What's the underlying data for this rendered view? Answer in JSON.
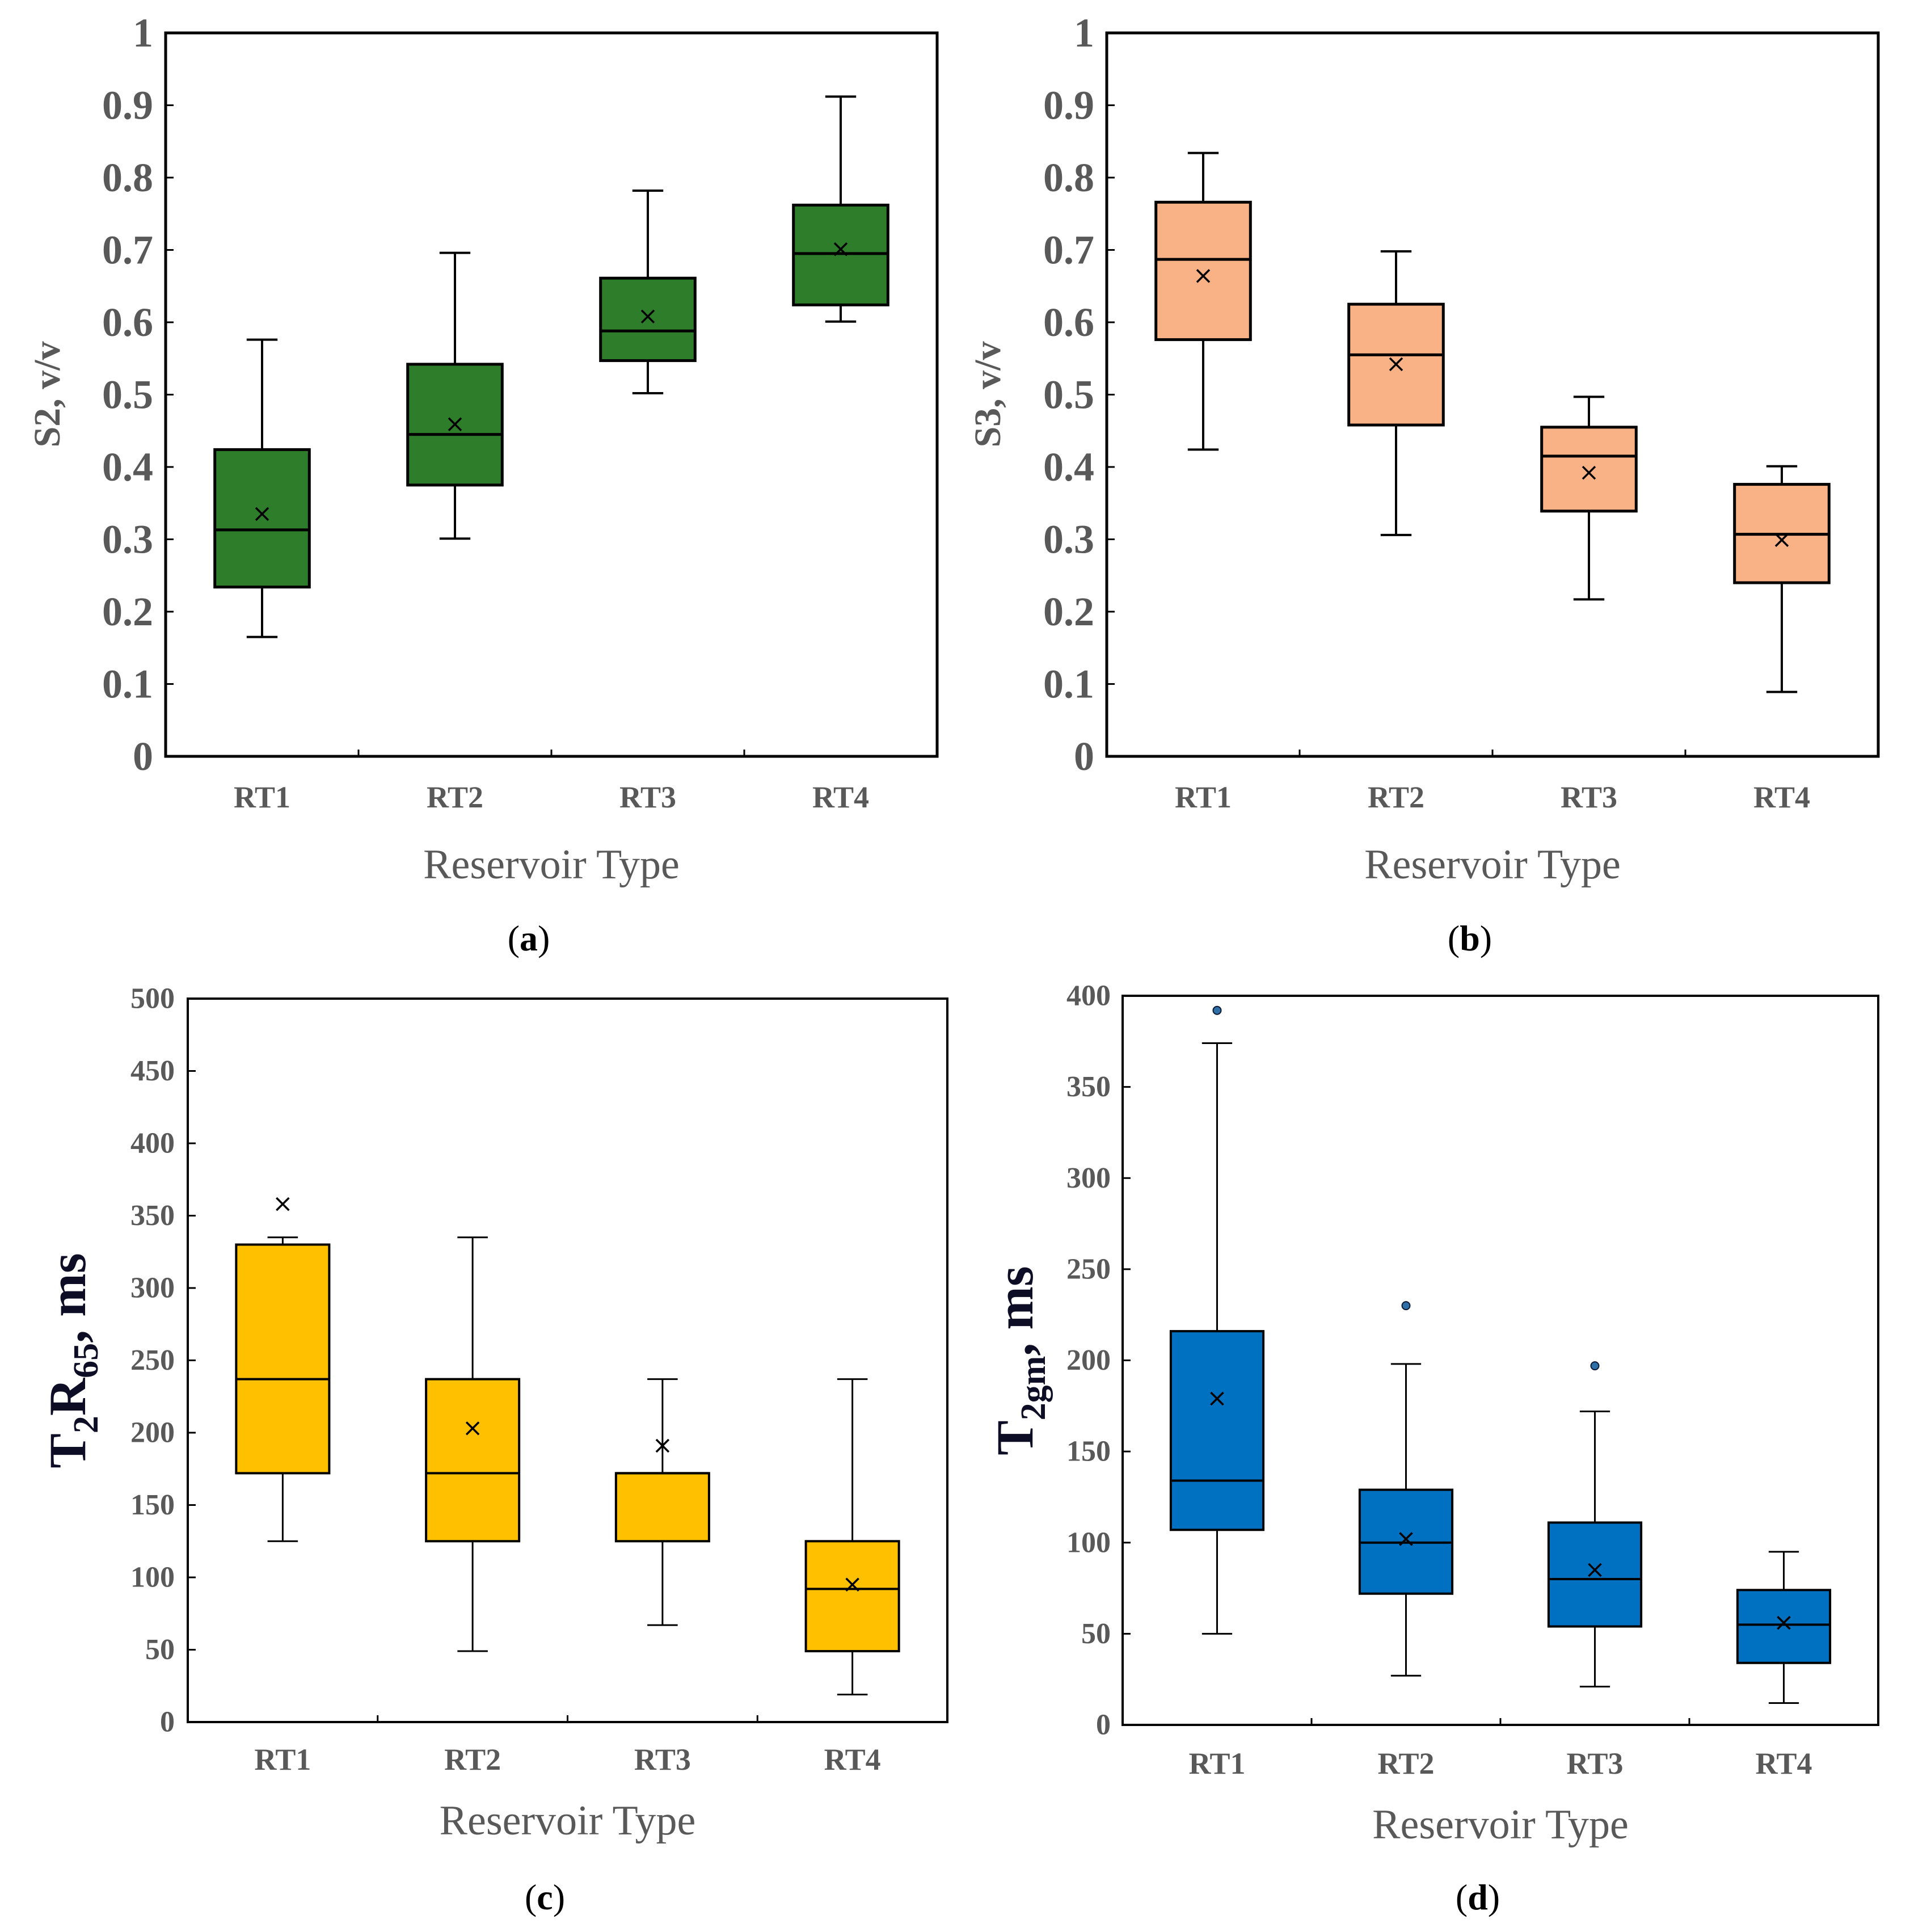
{
  "figure": {
    "panels": [
      {
        "id": "a",
        "letter": "a",
        "y_label": "S2, v/v",
        "x_label": "Reservoir Type"
      },
      {
        "id": "b",
        "letter": "b",
        "y_label": "S3, v/v",
        "x_label": "Reservoir Type"
      },
      {
        "id": "c",
        "letter": "c",
        "y_label_main": "T",
        "y_label_sub1": "2",
        "y_label_mid": "R",
        "y_label_sub2": "65",
        "y_label_tail": ", ms",
        "x_label": "Reservoir Type"
      },
      {
        "id": "d",
        "letter": "d",
        "y_label_main": "T",
        "y_label_sub1": "2gm",
        "y_label_tail": ", ms",
        "x_label": "Reservoir Type"
      }
    ]
  },
  "chart_data": [
    {
      "type": "box",
      "panel": "a",
      "color": "#2e7d2b",
      "ylabel": "S2, v/v",
      "xlabel": "Reservoir Type",
      "ylim": [
        0,
        1
      ],
      "yticks": [
        0,
        0.1,
        0.2,
        0.3,
        0.4,
        0.5,
        0.6,
        0.7,
        0.8,
        0.9,
        1
      ],
      "ytick_labels": [
        "0",
        "0.1",
        "0.2",
        "0.3",
        "0.4",
        "0.5",
        "0.6",
        "0.7",
        "0.8",
        "0.9",
        "1"
      ],
      "categories": [
        "RT1",
        "RT2",
        "RT3",
        "RT4"
      ],
      "boxes": [
        {
          "min": 0.165,
          "q1": 0.234,
          "median": 0.313,
          "q3": 0.424,
          "max": 0.576,
          "mean": 0.335
        },
        {
          "min": 0.301,
          "q1": 0.375,
          "median": 0.445,
          "q3": 0.542,
          "max": 0.696,
          "mean": 0.459
        },
        {
          "min": 0.502,
          "q1": 0.547,
          "median": 0.588,
          "q3": 0.661,
          "max": 0.782,
          "mean": 0.608
        },
        {
          "min": 0.601,
          "q1": 0.624,
          "median": 0.695,
          "q3": 0.762,
          "max": 0.912,
          "mean": 0.701
        }
      ]
    },
    {
      "type": "box",
      "panel": "b",
      "color": "#f9b186",
      "ylabel": "S3, v/v",
      "xlabel": "Reservoir Type",
      "ylim": [
        0,
        1
      ],
      "yticks": [
        0,
        0.1,
        0.2,
        0.3,
        0.4,
        0.5,
        0.6,
        0.7,
        0.8,
        0.9,
        1
      ],
      "ytick_labels": [
        "0",
        "0.1",
        "0.2",
        "0.3",
        "0.4",
        "0.5",
        "0.6",
        "0.7",
        "0.8",
        "0.9",
        "1"
      ],
      "categories": [
        "RT1",
        "RT2",
        "RT3",
        "RT4"
      ],
      "boxes": [
        {
          "min": 0.424,
          "q1": 0.576,
          "median": 0.687,
          "q3": 0.766,
          "max": 0.834,
          "mean": 0.664
        },
        {
          "min": 0.306,
          "q1": 0.458,
          "median": 0.555,
          "q3": 0.625,
          "max": 0.698,
          "mean": 0.542
        },
        {
          "min": 0.217,
          "q1": 0.339,
          "median": 0.415,
          "q3": 0.455,
          "max": 0.497,
          "mean": 0.392
        },
        {
          "min": 0.089,
          "q1": 0.24,
          "median": 0.307,
          "q3": 0.376,
          "max": 0.401,
          "mean": 0.299
        }
      ]
    },
    {
      "type": "box",
      "panel": "c",
      "color": "#ffc000",
      "ylabel": "T2R65, ms",
      "xlabel": "Reservoir Type",
      "ylim": [
        0,
        500
      ],
      "yticks": [
        0,
        50,
        100,
        150,
        200,
        250,
        300,
        350,
        400,
        450,
        500
      ],
      "ytick_labels": [
        "0",
        "50",
        "100",
        "150",
        "200",
        "250",
        "300",
        "350",
        "400",
        "450",
        "500"
      ],
      "categories": [
        "RT1",
        "RT2",
        "RT3",
        "RT4"
      ],
      "boxes": [
        {
          "min": 125,
          "q1": 172,
          "median": 237,
          "q3": 330,
          "max": 335,
          "mean": 358
        },
        {
          "min": 49,
          "q1": 125,
          "median": 172,
          "q3": 237,
          "max": 335,
          "mean": 203
        },
        {
          "min": 67,
          "q1": 125,
          "median": 172,
          "q3": 172,
          "max": 237,
          "mean": 191
        },
        {
          "min": 19,
          "q1": 49,
          "median": 92,
          "q3": 125,
          "max": 237,
          "mean": 95
        }
      ]
    },
    {
      "type": "box",
      "panel": "d",
      "color": "#0070c0",
      "ylabel": "T2gm, ms",
      "xlabel": "Reservoir Type",
      "ylim": [
        0,
        400
      ],
      "yticks": [
        0,
        50,
        100,
        150,
        200,
        250,
        300,
        350,
        400
      ],
      "ytick_labels": [
        "0",
        "50",
        "100",
        "150",
        "200",
        "250",
        "300",
        "350",
        "400"
      ],
      "categories": [
        "RT1",
        "RT2",
        "RT3",
        "RT4"
      ],
      "boxes": [
        {
          "min": 50,
          "q1": 107,
          "median": 134,
          "q3": 216,
          "max": 374,
          "mean": 179,
          "outliers": [
            392
          ]
        },
        {
          "min": 27,
          "q1": 72,
          "median": 100,
          "q3": 129,
          "max": 198,
          "mean": 102,
          "outliers": [
            230
          ]
        },
        {
          "min": 21,
          "q1": 54,
          "median": 80,
          "q3": 111,
          "max": 172,
          "mean": 85,
          "outliers": [
            197
          ]
        },
        {
          "min": 12,
          "q1": 34,
          "median": 55,
          "q3": 74,
          "max": 95,
          "mean": 56
        }
      ]
    }
  ]
}
